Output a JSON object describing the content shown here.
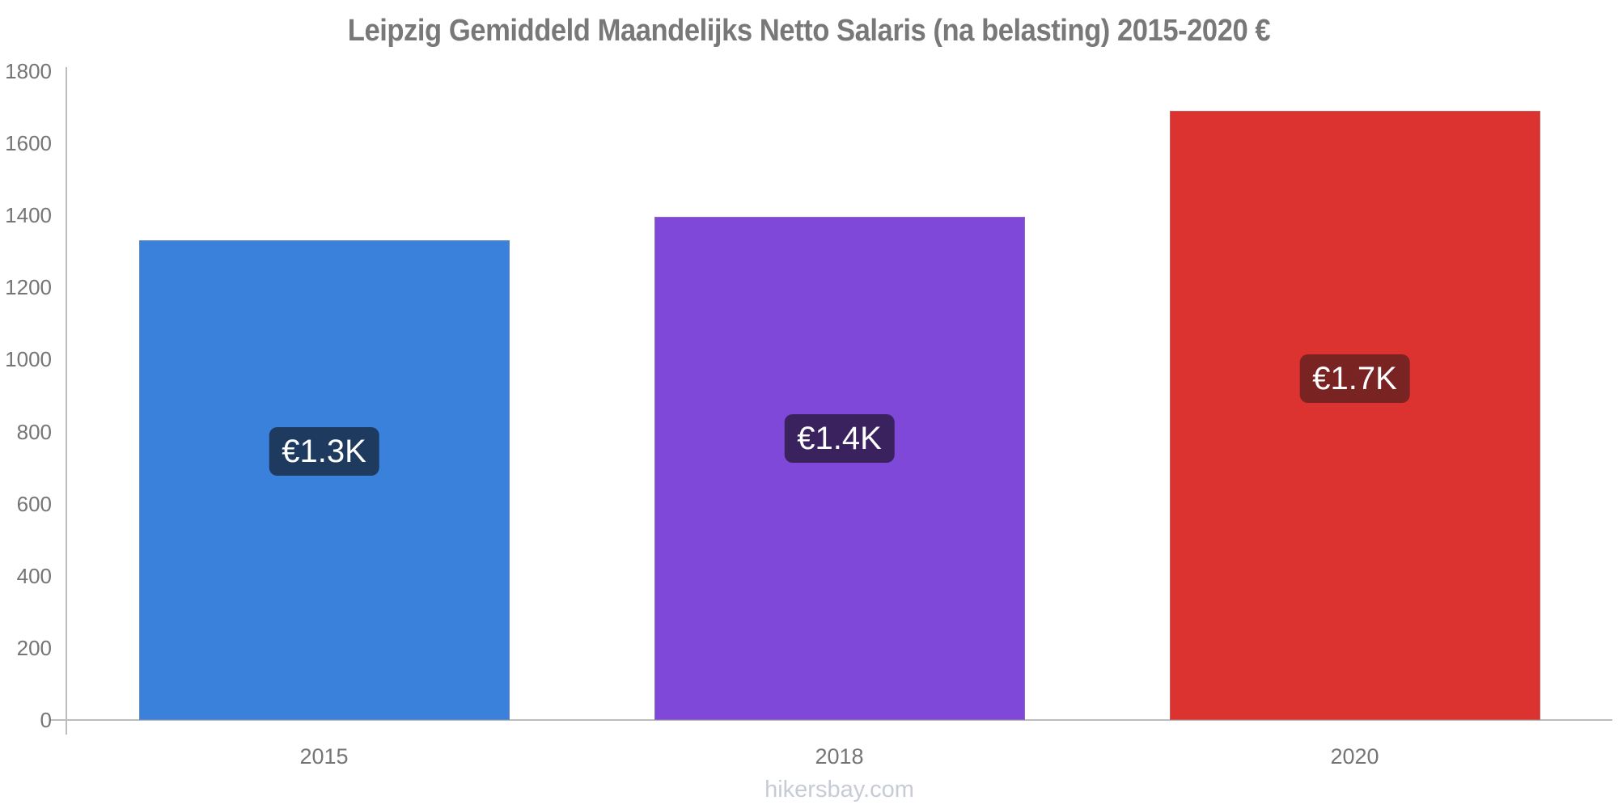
{
  "chart_data": {
    "type": "bar",
    "title": "Leipzig Gemiddeld Maandelijks Netto Salaris (na belasting) 2015-2020 €",
    "categories": [
      "2015",
      "2018",
      "2020"
    ],
    "values": [
      1330,
      1395,
      1690
    ],
    "value_labels": [
      "€1.3K",
      "€1.4K",
      "€1.7K"
    ],
    "bar_colors": [
      "#3a81db",
      "#7f48d9",
      "#dd3330"
    ],
    "value_label_bg": [
      "#1e3b5f",
      "#3a225f",
      "#7a2323"
    ],
    "value_label_text_color": "#ffffff",
    "xlabel": "",
    "ylabel": "",
    "ylim": [
      0,
      1800
    ],
    "yticks": [
      0,
      200,
      400,
      600,
      800,
      1000,
      1200,
      1400,
      1600,
      1800
    ],
    "grid": false,
    "legend": false,
    "background_color": "#ffffff",
    "axis_line_color": "#bdbdbd",
    "tick_text_color": "#757575",
    "title_color": "#787878"
  },
  "watermark": {
    "text": "hikersbay.com",
    "color": "#c6cbd6"
  }
}
